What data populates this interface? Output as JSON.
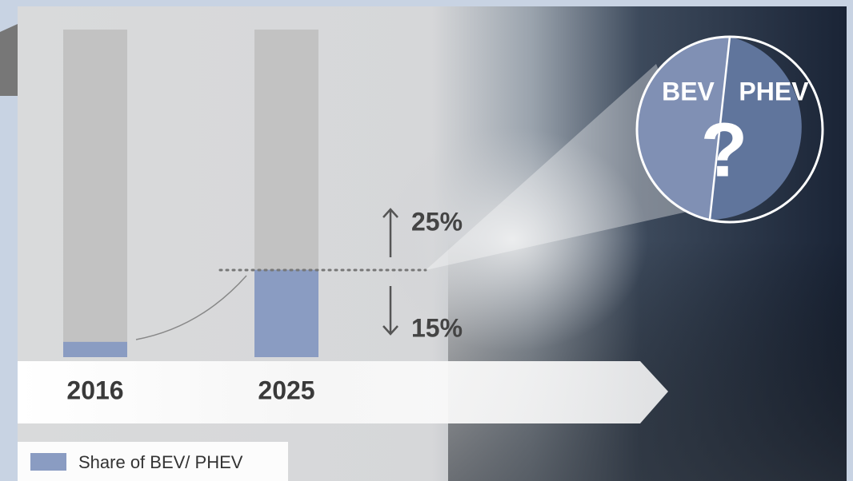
{
  "chart_data": {
    "type": "bar",
    "categories": [
      "2016",
      "2025"
    ],
    "series": [
      {
        "name": "Share of BEV/ PHEV",
        "color": "#8a9cc2",
        "values": [
          3.5,
          20
        ]
      }
    ],
    "ylim": [
      0,
      75
    ],
    "annotations": {
      "upper": "25%",
      "lower": "15%"
    },
    "pie_labels": [
      "BEV",
      "PHEV"
    ],
    "pie_center_text": "?",
    "legend": "bottom-left"
  }
}
